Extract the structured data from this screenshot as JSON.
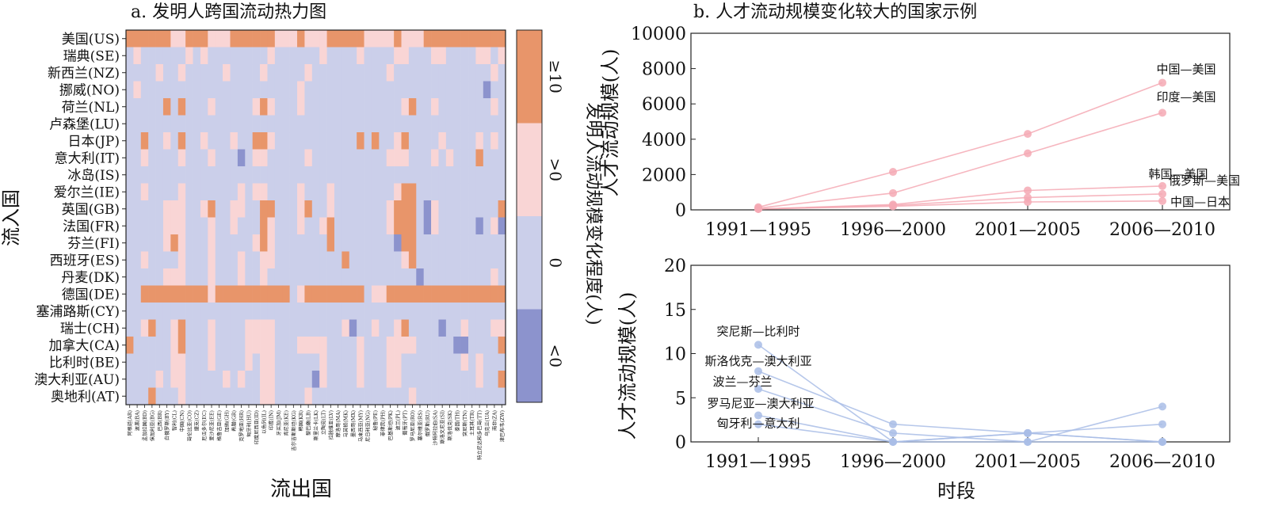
{
  "chart_data": [
    {
      "type": "heatmap",
      "title": "a. 发明人跨国流动热力图",
      "xlabel": "流出国",
      "ylabel": "流入国",
      "rows": [
        "美国(US)",
        "瑞典(SE)",
        "新西兰(NZ)",
        "挪威(NO)",
        "荷兰(NL)",
        "卢森堡(LU)",
        "日本(JP)",
        "意大利(IT)",
        "冰岛(IS)",
        "爱尔兰(IE)",
        "英国(GB)",
        "法国(FR)",
        "芬兰(FI)",
        "西班牙(ES)",
        "丹麦(DK)",
        "德国(DE)",
        "塞浦路斯(CY)",
        "瑞士(CH)",
        "加拿大(CA)",
        "比利时(BE)",
        "澳大利亚(AU)",
        "奥地利(AT)"
      ],
      "columns": [
        "阿根廷(AR)",
        "波黑(BA)",
        "孟加拉国(BD)",
        "保加利亚(BG)",
        "巴西(BR)",
        "白俄罗斯(BY)",
        "智利(CL)",
        "中国(CN)",
        "哥伦比亚(CO)",
        "捷克(CZ)",
        "厄瓜多尔(EC)",
        "爱沙尼亚(EE)",
        "格鲁吉亚(GE)",
        "加纳(GH)",
        "希腊(GR)",
        "克罗地亚(HR)",
        "匈牙利(HU)",
        "印度尼西亚(ID)",
        "以色列(IL)",
        "印度(IN)",
        "牙买加(JM)",
        "肯尼亚(KE)",
        "吉尔吉斯斯坦(KG)",
        "韩国(KR)",
        "黎巴嫩(LB)",
        "斯里兰卡(LK)",
        "立陶宛(LT)",
        "拉脱维亚(LV)",
        "摩洛哥(MA)",
        "马其顿(MK)",
        "墨西哥(MX)",
        "马来西亚(MY)",
        "尼日利亚(NG)",
        "秘鲁(PE)",
        "菲律宾(PH)",
        "巴基斯坦(PK)",
        "波兰(PL)",
        "葡萄牙(PT)",
        "罗马尼亚(RO)",
        "塞尔维亚(RS)",
        "俄罗斯(RU)",
        "沙特阿拉伯(SA)",
        "斯洛文尼亚(SI)",
        "斯洛伐克(SK)",
        "泰国(TH)",
        "突尼斯(TN)",
        "土耳其(TR)",
        "特立尼达和多巴哥(TT)",
        "乌克兰(UA)",
        "南非(ZA)",
        "津巴布韦(ZW)"
      ],
      "legend": {
        "title": "发明人流动规模变化程度(人)",
        "bins": [
          "≥10",
          ">0",
          "0",
          "<0"
        ],
        "colors": [
          "#e8956a",
          "#f9d5d5",
          "#cbcfea",
          "#8c93cd"
        ]
      },
      "value_codes": "Per row string, one character per column: 3 = ≥10, 2 = >0, 1 = 0, 0 = <0",
      "cells": [
        "333333223332223333332223222333332222322233333333333",
        "121111112121111111121111112111121111221112211112212",
        "111121121111121111211111211111111112111111111111121",
        "121111111111111111111112111111111111111111111111011",
        "111113131112111112321112111111111111123112111111121",
        "111111111111111111111111111111111111111111111111111",
        "113112131121112113321111111111131311231111211112121",
        "112111121112111012211111211111111112221112121113111",
        "111111111111111111111111111111111111111111111111111",
        "112111121111111212211112111211111111233111111111111",
        "111112221123112211331112311211111112333102111111113",
        "111112221112112111321112112311111112333102111110120",
        "111112321112111112321111111311111111033111111111111",
        "112111121112111211221111111113111111123111111111111",
        "111112221112111211211111111111111111111011111111121",
        "113333333332333333333312333333331223333333333333333",
        "111111111111111111111111111111111111111111111111111",
        "112311231112111122221111111112011211231111011211122",
        "311111231112111122221112222111121112222111110011113",
        "111111221112111121221111112111121112211111111212111",
        "111121221111121211221111102111121112211111111112113",
        "111311121111111111221111211111111111112111111111111"
      ]
    },
    {
      "type": "line",
      "title": "b. 人才流动规模变化较大的国家示例",
      "xlabel": "",
      "ylabel": "人才流动规模(人)",
      "categories": [
        "1991—1995",
        "1996—2000",
        "2001—2005",
        "2006—2010"
      ],
      "ylim": [
        0,
        10000
      ],
      "yticks": [
        0,
        2000,
        4000,
        6000,
        8000,
        10000
      ],
      "color": "#f4a9b4",
      "series": [
        {
          "name": "中国—美国",
          "values": [
            150,
            2150,
            4300,
            7200
          ]
        },
        {
          "name": "印度—美国",
          "values": [
            100,
            950,
            3200,
            5500
          ]
        },
        {
          "name": "韩国—美国",
          "values": [
            50,
            300,
            1100,
            1350
          ]
        },
        {
          "name": "俄罗斯—美国",
          "values": [
            50,
            250,
            700,
            900
          ]
        },
        {
          "name": "中国—日本",
          "values": [
            50,
            200,
            450,
            500
          ]
        }
      ]
    },
    {
      "type": "line",
      "title": "",
      "xlabel": "时段",
      "ylabel": "人才流动规模(人)",
      "categories": [
        "1991—1995",
        "1996—2000",
        "2001—2005",
        "2006—2010"
      ],
      "ylim": [
        0,
        20
      ],
      "yticks": [
        0,
        5,
        10,
        15,
        20
      ],
      "color": "#a9bde6",
      "series": [
        {
          "name": "突尼斯—比利时",
          "values": [
            11,
            0,
            1,
            0
          ]
        },
        {
          "name": "斯洛伐克—澳大利亚",
          "values": [
            8,
            2,
            1,
            2
          ]
        },
        {
          "name": "波兰—芬兰",
          "values": [
            6,
            1,
            0,
            4
          ]
        },
        {
          "name": "罗马尼亚—澳大利亚",
          "values": [
            3,
            0,
            0,
            0
          ]
        },
        {
          "name": "匈牙利—意大利",
          "values": [
            2,
            0,
            1,
            0
          ]
        }
      ]
    }
  ]
}
